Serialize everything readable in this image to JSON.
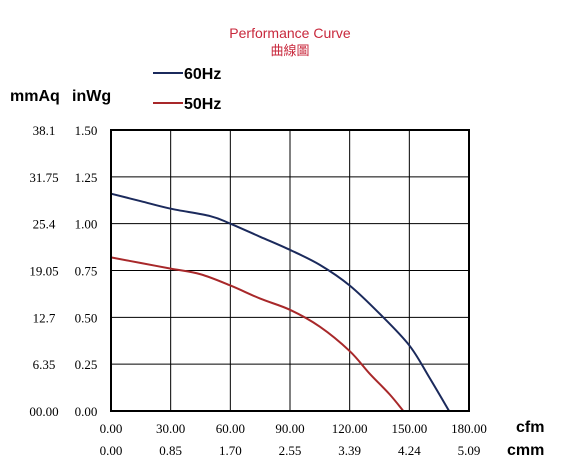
{
  "chart_data": {
    "type": "line",
    "title": "Performance Curve",
    "subtitle": "曲線圖",
    "y_left_unit": "mmAq",
    "y_right_unit": "inWg",
    "x_primary_unit": "cfm",
    "x_secondary_unit": "cmm",
    "xlim": [
      0,
      180
    ],
    "ylim": [
      0,
      1.5
    ],
    "grid": true,
    "x_ticks": [
      "0.00",
      "30.00",
      "60.00",
      "90.00",
      "120.00",
      "150.00",
      "180.00"
    ],
    "x_secondary_ticks": [
      "0.00",
      "0.85",
      "1.70",
      "2.55",
      "3.39",
      "4.24",
      "5.09"
    ],
    "y_ticks_inwg": [
      "0.00",
      "0.25",
      "0.50",
      "0.75",
      "1.00",
      "1.25",
      "1.50"
    ],
    "y_ticks_mmaq": [
      "00.00",
      "6.35",
      "12.7",
      "19.05",
      "25.4",
      "31.75",
      "38.1"
    ],
    "legend_position": "top-left",
    "series": [
      {
        "name": "60Hz",
        "color": "#1b2a5c",
        "points": [
          [
            0,
            1.16
          ],
          [
            15,
            1.12
          ],
          [
            30,
            1.08
          ],
          [
            50,
            1.04
          ],
          [
            60,
            1.0
          ],
          [
            75,
            0.93
          ],
          [
            90,
            0.86
          ],
          [
            105,
            0.78
          ],
          [
            120,
            0.67
          ],
          [
            135,
            0.52
          ],
          [
            150,
            0.35
          ],
          [
            160,
            0.18
          ],
          [
            170,
            0.0
          ]
        ]
      },
      {
        "name": "50Hz",
        "color": "#a8282a",
        "points": [
          [
            0,
            0.82
          ],
          [
            15,
            0.79
          ],
          [
            30,
            0.76
          ],
          [
            45,
            0.73
          ],
          [
            60,
            0.67
          ],
          [
            75,
            0.6
          ],
          [
            90,
            0.54
          ],
          [
            105,
            0.45
          ],
          [
            120,
            0.32
          ],
          [
            130,
            0.2
          ],
          [
            140,
            0.09
          ],
          [
            147,
            0.0
          ]
        ]
      }
    ]
  }
}
